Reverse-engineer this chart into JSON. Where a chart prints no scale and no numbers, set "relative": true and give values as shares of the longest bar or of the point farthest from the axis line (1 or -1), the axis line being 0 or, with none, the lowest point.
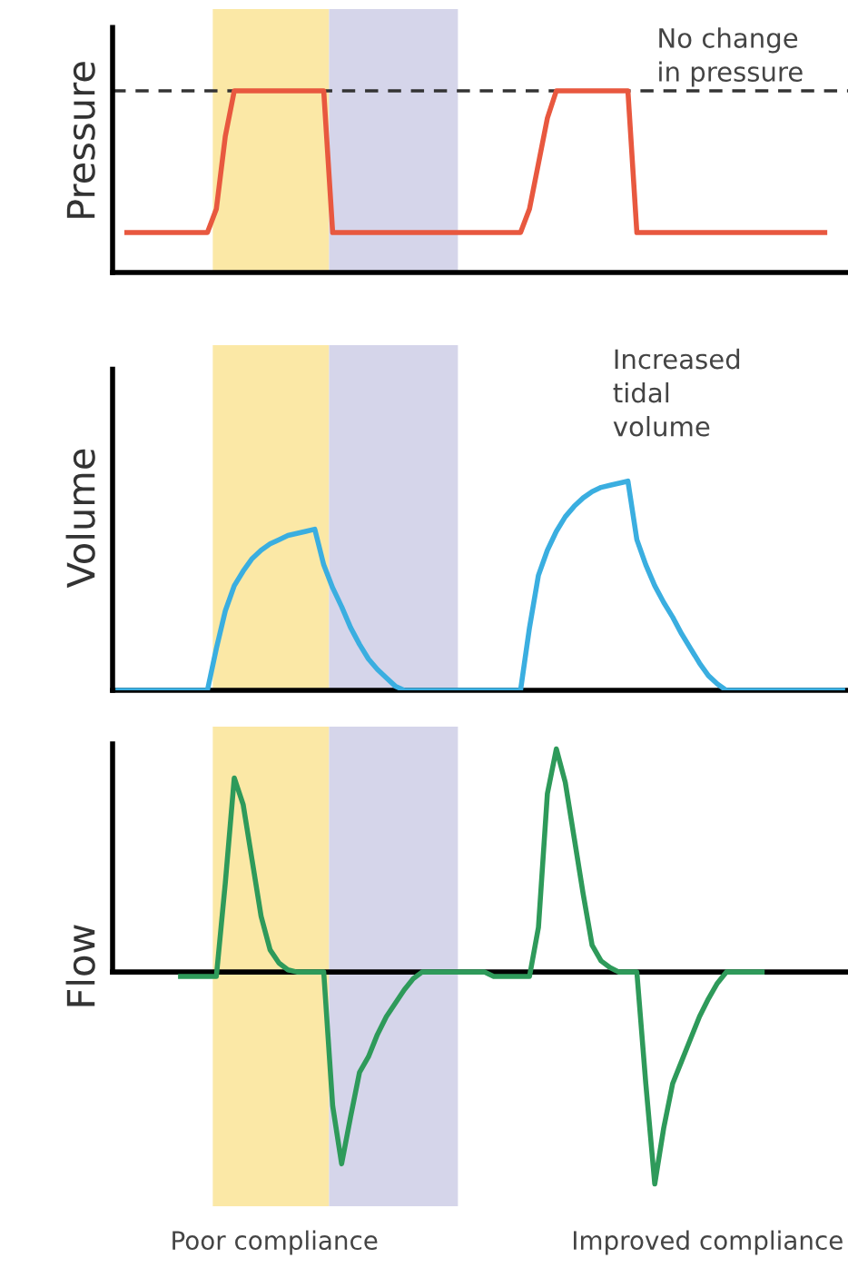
{
  "chart_data": [
    {
      "type": "line",
      "relative": true,
      "ylabel": "Pressure",
      "categories": [
        null,
        null,
        null,
        null,
        null,
        null,
        null,
        null,
        null,
        null,
        null,
        null,
        null,
        null,
        null,
        null,
        null,
        null,
        null,
        null,
        null,
        null,
        null,
        null,
        null,
        null,
        null,
        null,
        null,
        null,
        null,
        null,
        null,
        null,
        null,
        null,
        null,
        null,
        null,
        null,
        null,
        null,
        null,
        null,
        null,
        null,
        null,
        null,
        null,
        null,
        null,
        null,
        null,
        null,
        null,
        null,
        null,
        null,
        null,
        null,
        null,
        null,
        null,
        null,
        null,
        null,
        null,
        null,
        null,
        null,
        null,
        null,
        null,
        null,
        null,
        null,
        null,
        null,
        null,
        null,
        null,
        null
      ],
      "series": [
        {
          "color": "#e8583f",
          "values": [
            null,
            0.22,
            0.22,
            0.22,
            0.22,
            0.22,
            0.22,
            0.22,
            0.22,
            0.22,
            0.22,
            0.35,
            0.75,
            1,
            1,
            1,
            1,
            1,
            1,
            1,
            1,
            1,
            1,
            1,
            0.22,
            0.22,
            0.22,
            0.22,
            0.22,
            0.22,
            0.22,
            0.22,
            0.22,
            0.22,
            0.22,
            0.22,
            0.22,
            0.22,
            0.22,
            0.22,
            0.22,
            0.22,
            0.22,
            0.22,
            0.22,
            0.22,
            0.35,
            0.6,
            0.85,
            1,
            1,
            1,
            1,
            1,
            1,
            1,
            1,
            1,
            0.22,
            0.22,
            0.22,
            0.22,
            0.22,
            0.22,
            0.22,
            0.22,
            0.22,
            0.22,
            0.22,
            0.22,
            0.22,
            0.22,
            0.22,
            0.22,
            0.22,
            0.22,
            0.22,
            0.22,
            0.22,
            0.22,
            null,
            null
          ]
        }
      ],
      "ref_lines": [
        {
          "axis": "y",
          "value": 1,
          "color": "#333333",
          "line_style": "dashed"
        }
      ],
      "annotations": [
        "No change\nin pressure"
      ],
      "marker": "none",
      "line_style": "solid"
    },
    {
      "type": "line",
      "relative": true,
      "ylabel": "Volume",
      "categories": [
        null,
        null,
        null,
        null,
        null,
        null,
        null,
        null,
        null,
        null,
        null,
        null,
        null,
        null,
        null,
        null,
        null,
        null,
        null,
        null,
        null,
        null,
        null,
        null,
        null,
        null,
        null,
        null,
        null,
        null,
        null,
        null,
        null,
        null,
        null,
        null,
        null,
        null,
        null,
        null,
        null,
        null,
        null,
        null,
        null,
        null,
        null,
        null,
        null,
        null,
        null,
        null,
        null,
        null,
        null,
        null,
        null,
        null,
        null,
        null,
        null,
        null,
        null,
        null,
        null,
        null,
        null,
        null,
        null,
        null,
        null,
        null,
        null,
        null,
        null,
        null,
        null,
        null,
        null,
        null,
        null,
        null
      ],
      "series": [
        {
          "color": "#3aaee0",
          "values": [
            0,
            0,
            0,
            0,
            0,
            0,
            0,
            0,
            0,
            0,
            0,
            0.2,
            0.38,
            0.5,
            0.57,
            0.63,
            0.67,
            0.7,
            0.72,
            0.74,
            0.75,
            0.76,
            0.77,
            0.6,
            0.49,
            0.4,
            0.3,
            0.22,
            0.15,
            0.1,
            0.06,
            0.02,
            0,
            0,
            0,
            0,
            0,
            0,
            0,
            0,
            0,
            0,
            0,
            0,
            0,
            0,
            0.3,
            0.55,
            0.67,
            0.76,
            0.83,
            0.88,
            0.92,
            0.95,
            0.97,
            0.98,
            0.99,
            1,
            0.72,
            0.6,
            0.5,
            0.42,
            0.35,
            0.27,
            0.2,
            0.13,
            0.07,
            0.03,
            0,
            0,
            0,
            0,
            0,
            0,
            0,
            0,
            0,
            0,
            0,
            0,
            0,
            0
          ]
        }
      ],
      "annotations": [
        "Increased\ntidal\nvolume"
      ],
      "marker": "none",
      "line_style": "solid"
    },
    {
      "type": "line",
      "relative": true,
      "ylabel": "Flow",
      "categories": [
        null,
        null,
        null,
        null,
        null,
        null,
        null,
        null,
        null,
        null,
        null,
        null,
        null,
        null,
        null,
        null,
        null,
        null,
        null,
        null,
        null,
        null,
        null,
        null,
        null,
        null,
        null,
        null,
        null,
        null,
        null,
        null,
        null,
        null,
        null,
        null,
        null,
        null,
        null,
        null,
        null,
        null,
        null,
        null,
        null,
        null,
        null,
        null,
        null,
        null,
        null,
        null,
        null,
        null,
        null,
        null,
        null,
        null,
        null,
        null,
        null,
        null,
        null,
        null,
        null,
        null,
        null,
        null,
        null,
        null,
        null,
        null,
        null,
        null,
        null,
        null,
        null,
        null,
        null,
        null,
        null,
        null
      ],
      "series": [
        {
          "color": "#2e9a5a",
          "values": [
            null,
            null,
            null,
            null,
            null,
            null,
            null,
            -0.02,
            -0.02,
            -0.02,
            -0.02,
            -0.02,
            0.4,
            0.87,
            0.75,
            0.5,
            0.25,
            0.1,
            0.04,
            0.01,
            0,
            0,
            0,
            0,
            -0.6,
            -0.86,
            -0.65,
            -0.45,
            -0.38,
            -0.28,
            -0.2,
            -0.14,
            -0.08,
            -0.03,
            0,
            0,
            0,
            0,
            0,
            0,
            0,
            0,
            -0.02,
            -0.02,
            -0.02,
            -0.02,
            -0.02,
            0.2,
            0.8,
            1,
            0.85,
            0.6,
            0.35,
            0.12,
            0.05,
            0.02,
            0,
            0,
            0,
            -0.5,
            -0.95,
            -0.7,
            -0.5,
            -0.4,
            -0.3,
            -0.2,
            -0.12,
            -0.05,
            0,
            0,
            0,
            0,
            0,
            null,
            null,
            null,
            null,
            null,
            null,
            null,
            null,
            null
          ]
        }
      ],
      "annotations": [
        "Poor compliance",
        "Improved compliance"
      ],
      "marker": "none",
      "line_style": "solid"
    }
  ]
}
